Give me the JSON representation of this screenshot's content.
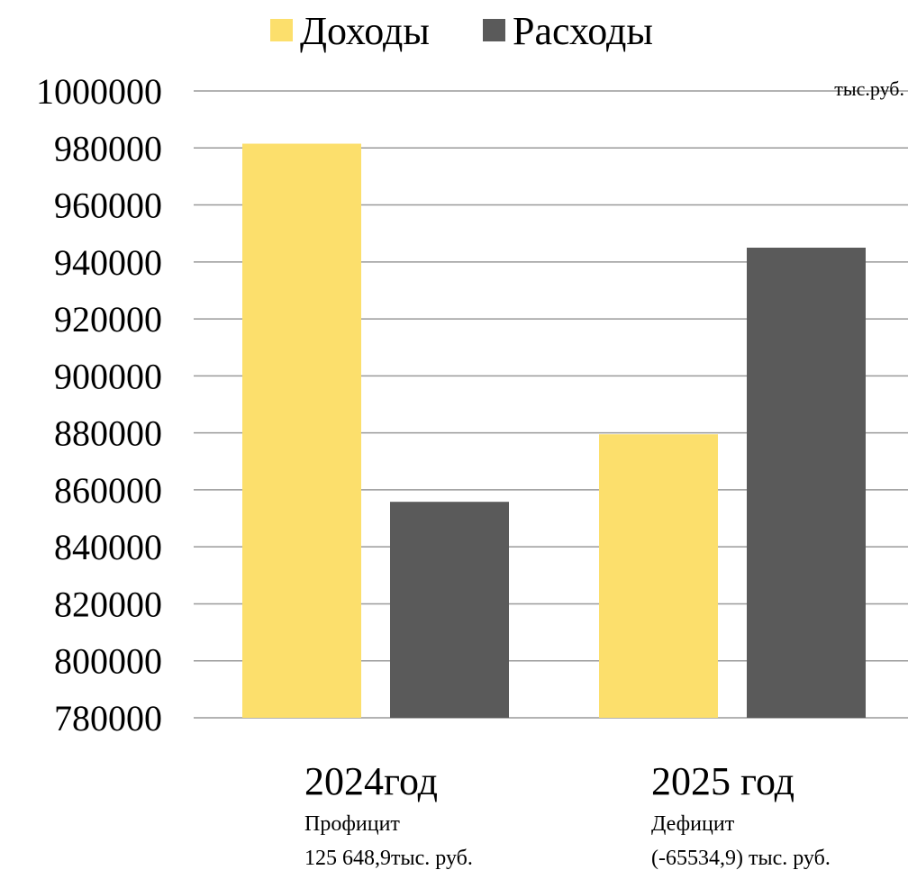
{
  "chart_data": {
    "type": "bar",
    "categories": [
      "2024год",
      "2025 год"
    ],
    "series": [
      {
        "name": "Доходы",
        "color": "#FCDF6C",
        "values": [
          981500,
          879500
        ]
      },
      {
        "name": "Расходы",
        "color": "#5A5A5A",
        "values": [
          855800,
          945000
        ]
      }
    ],
    "ylim": [
      780000,
      1000000
    ],
    "yticks": [
      780000,
      800000,
      820000,
      840000,
      860000,
      880000,
      900000,
      920000,
      940000,
      960000,
      980000,
      1000000
    ],
    "unit_label": "тыс.руб.",
    "grid": true,
    "legend_position": "top",
    "category_notes": [
      [
        "Профицит",
        "125 648,9тыс. руб."
      ],
      [
        "Дефицит",
        "(-65534,9) тыс. руб."
      ]
    ]
  }
}
